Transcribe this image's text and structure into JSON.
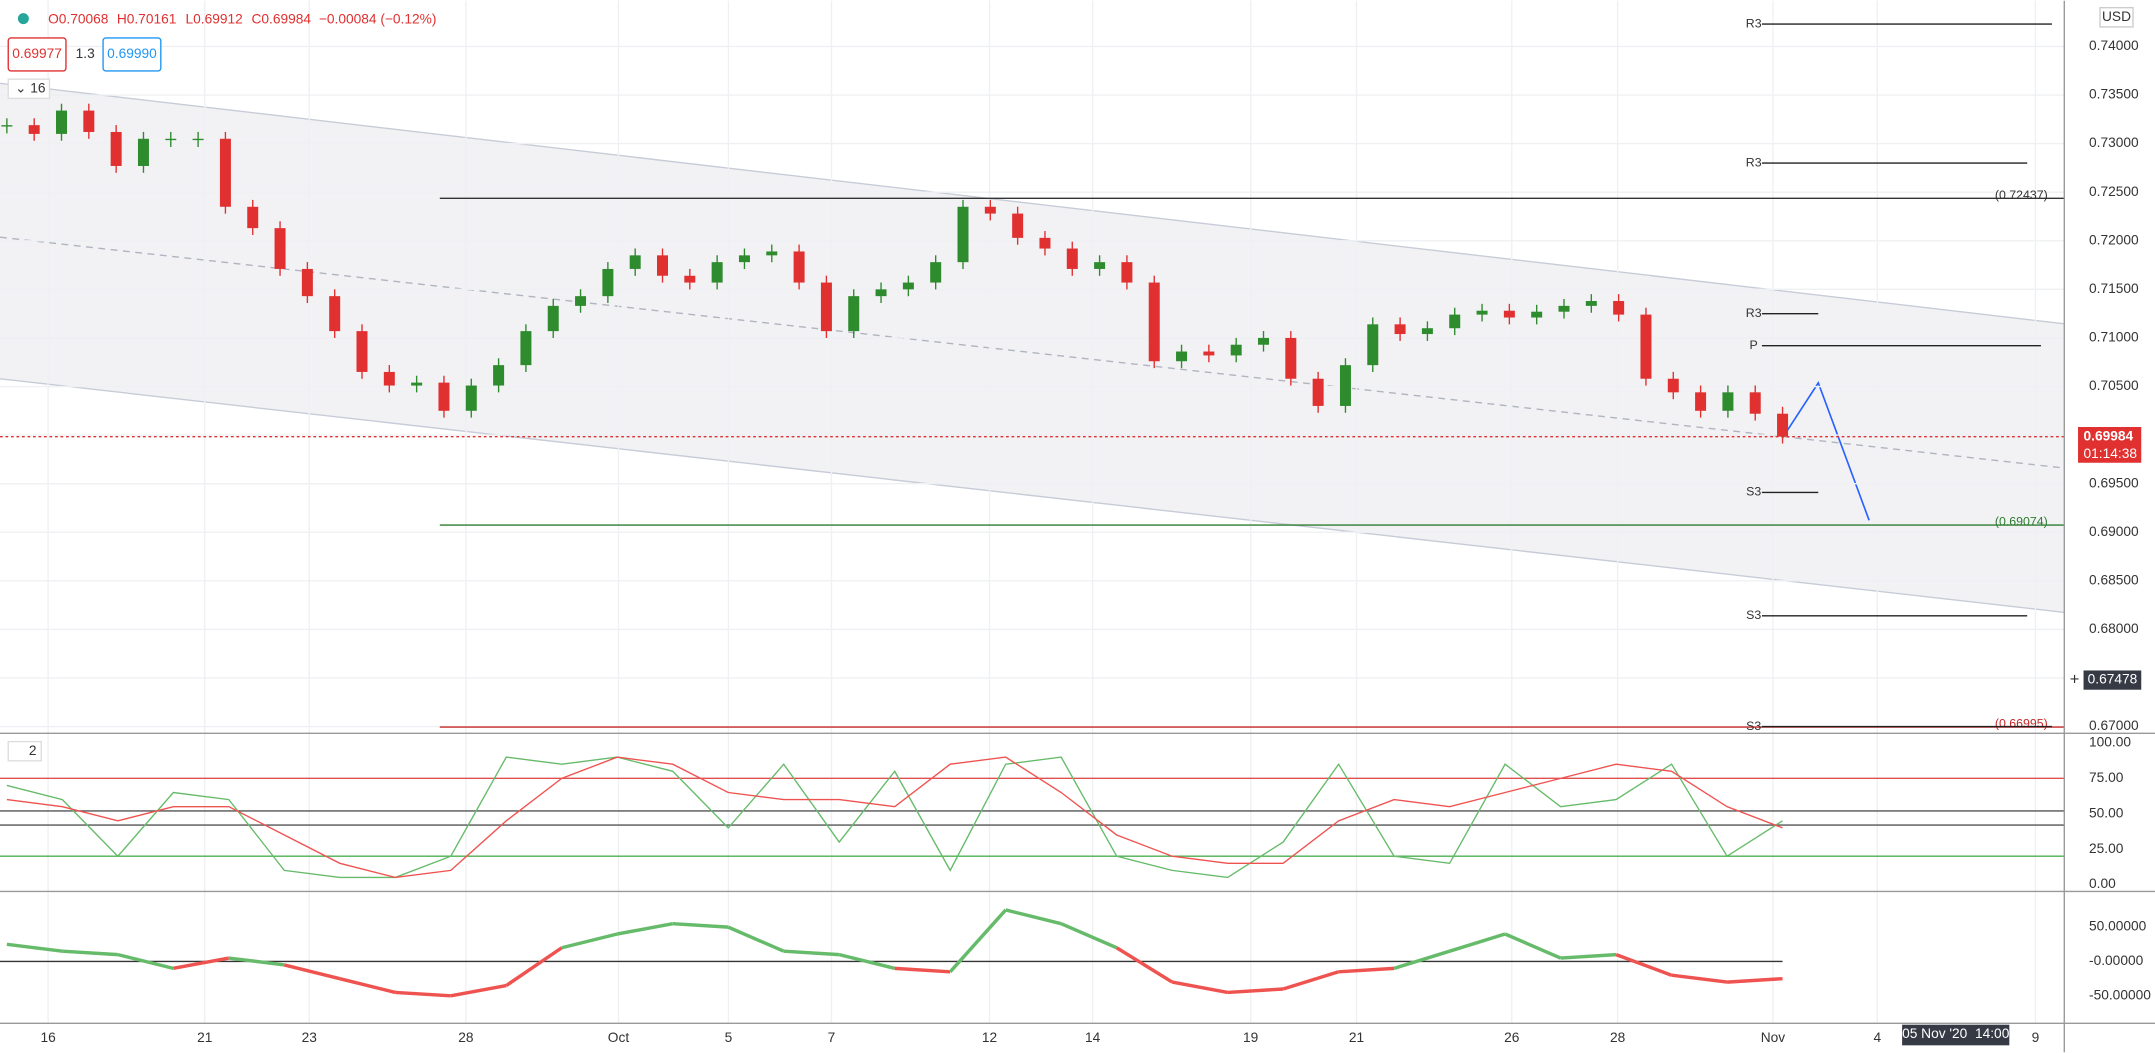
{
  "header": {
    "open": "O0.70068",
    "high": "H0.70161",
    "low": "L0.69912",
    "close": "C0.69984",
    "change": "−0.00084 (−0.12%)",
    "bid": "0.69977",
    "spread": "1.3",
    "ask": "0.69990",
    "indicator_count": "16",
    "sub_indicator_count": "2"
  },
  "chart_data": [
    {
      "type": "candlestick",
      "currency": "USD",
      "x_labels": [
        "16",
        "21",
        "23",
        "28",
        "Oct",
        "5",
        "7",
        "12",
        "14",
        "19",
        "21",
        "26",
        "28",
        "Nov",
        "4",
        "9"
      ],
      "closes": [
        0.7319,
        0.731,
        0.7334,
        0.7312,
        0.7277,
        0.7305,
        0.7305,
        0.7305,
        0.7235,
        0.7213,
        0.7171,
        0.7143,
        0.7107,
        0.7065,
        0.7051,
        0.7054,
        0.7025,
        0.7051,
        0.7072,
        0.7107,
        0.7133,
        0.7143,
        0.7171,
        0.7185,
        0.7164,
        0.7157,
        0.7178,
        0.7185,
        0.7189,
        0.7157,
        0.7107,
        0.7143,
        0.715,
        0.7157,
        0.7178,
        0.7235,
        0.7228,
        0.7203,
        0.7192,
        0.7171,
        0.7178,
        0.7157,
        0.7076,
        0.7086,
        0.7082,
        0.7093,
        0.71,
        0.7058,
        0.703,
        0.7072,
        0.7114,
        0.7104,
        0.711,
        0.7124,
        0.7128,
        0.7121,
        0.7127,
        0.7133,
        0.7138,
        0.7124,
        0.7058,
        0.7044,
        0.7025,
        0.7044,
        0.7022,
        0.69984
      ],
      "up_color": "#2e8b2e",
      "down_color": "#e03030",
      "ylim": [
        0.6693,
        0.7447
      ],
      "yticks": [
        {
          "value": 0.74,
          "label": "0.74000"
        },
        {
          "value": 0.735,
          "label": "0.73500"
        },
        {
          "value": 0.73,
          "label": "0.73000"
        },
        {
          "value": 0.725,
          "label": "0.72500"
        },
        {
          "value": 0.72,
          "label": "0.72000"
        },
        {
          "value": 0.715,
          "label": "0.71500"
        },
        {
          "value": 0.71,
          "label": "0.71000"
        },
        {
          "value": 0.705,
          "label": "0.70500"
        },
        {
          "value": 0.7,
          "label": "0.70000"
        },
        {
          "value": 0.695,
          "label": "0.69500"
        },
        {
          "value": 0.69,
          "label": "0.69000"
        },
        {
          "value": 0.685,
          "label": "0.68500"
        },
        {
          "value": 0.68,
          "label": "0.68000"
        },
        {
          "value": 0.675,
          "label": "0.67500"
        },
        {
          "value": 0.67,
          "label": "0.67000"
        }
      ],
      "pivots": [
        {
          "label": "R3",
          "value": 0.7423
        },
        {
          "label": "R3",
          "value": 0.728
        },
        {
          "label": "R3",
          "value": 0.7125
        },
        {
          "label": "P",
          "value": 0.7092
        },
        {
          "label": "S3",
          "value": 0.6941
        },
        {
          "label": "S3",
          "value": 0.6814
        },
        {
          "label": "S3",
          "value": 0.67
        }
      ],
      "levels": [
        {
          "label": "(0.72437)",
          "value": 0.72437,
          "color": "#333333"
        },
        {
          "label": "(0.69074)",
          "value": 0.69074,
          "color": "#2e7d32"
        },
        {
          "label": "(0.66995)",
          "value": 0.66995,
          "color": "#c62828"
        }
      ],
      "last_price": {
        "value": 0.69984,
        "label": "0.69984"
      },
      "countdown": "01:14:38",
      "crosshair_price": {
        "value": 0.67478,
        "label": "0.67478"
      },
      "crosshair_date": "05 Nov '20  14:00"
    },
    {
      "type": "line",
      "ylim": [
        -4.85,
        106.8
      ],
      "yticks": [
        {
          "value": 100,
          "label": "100.00"
        },
        {
          "value": 75,
          "label": "75.00"
        },
        {
          "value": 50,
          "label": "50.00"
        },
        {
          "value": 25,
          "label": "25.00"
        },
        {
          "value": 0,
          "label": "0.00"
        }
      ],
      "bands": [
        {
          "value": 75,
          "color": "#e05050"
        },
        {
          "value": 52,
          "color": "#555555"
        },
        {
          "value": 42,
          "color": "#555555"
        },
        {
          "value": 20,
          "color": "#4caf50"
        }
      ],
      "series": [
        {
          "color": "#66bb6a",
          "values": [
            70,
            60,
            20,
            65,
            60,
            10,
            5,
            5,
            20,
            90,
            85,
            90,
            80,
            40,
            85,
            30,
            80,
            10,
            85,
            90,
            20,
            10,
            5,
            30,
            85,
            20,
            15,
            85,
            55,
            60,
            85,
            20,
            45
          ]
        },
        {
          "color": "#ef5350",
          "values": [
            60,
            55,
            45,
            55,
            55,
            35,
            15,
            5,
            10,
            45,
            75,
            90,
            85,
            65,
            60,
            60,
            55,
            85,
            90,
            65,
            35,
            20,
            15,
            15,
            45,
            60,
            55,
            65,
            75,
            85,
            80,
            55,
            40
          ]
        }
      ]
    },
    {
      "type": "line",
      "ylim": [
        -90,
        102
      ],
      "yticks": [
        {
          "value": 50,
          "label": "50.00000"
        },
        {
          "value": 0,
          "label": "-0.00000"
        },
        {
          "value": -50,
          "label": "-50.00000"
        }
      ],
      "up_color": "#66bb6a",
      "down_color": "#ef5350",
      "values": [
        25,
        15,
        10,
        -10,
        5,
        -5,
        -25,
        -45,
        -50,
        -35,
        20,
        40,
        55,
        50,
        15,
        10,
        -10,
        -15,
        75,
        55,
        20,
        -30,
        -45,
        -40,
        -15,
        -10,
        15,
        40,
        5,
        10,
        -20,
        -30,
        -25
      ]
    }
  ]
}
